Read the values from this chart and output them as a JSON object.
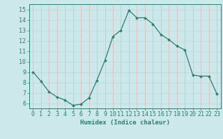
{
  "x": [
    0,
    1,
    2,
    3,
    4,
    5,
    6,
    7,
    8,
    9,
    10,
    11,
    12,
    13,
    14,
    15,
    16,
    17,
    18,
    19,
    20,
    21,
    22,
    23
  ],
  "y": [
    9.0,
    8.1,
    7.1,
    6.6,
    6.3,
    5.8,
    5.9,
    6.5,
    8.2,
    10.1,
    12.4,
    13.0,
    14.9,
    14.2,
    14.2,
    13.6,
    12.6,
    12.1,
    11.5,
    11.1,
    8.7,
    8.6,
    8.6,
    6.9
  ],
  "line_color": "#2d7d6e",
  "marker": "D",
  "marker_size": 2.0,
  "bg_color": "#cce8ea",
  "grid_color_v": "#e8b4b4",
  "grid_color_h": "#b8d8d8",
  "xlabel": "Humidex (Indice chaleur)",
  "ylim": [
    5.5,
    15.5
  ],
  "xlim": [
    -0.5,
    23.5
  ],
  "yticks": [
    6,
    7,
    8,
    9,
    10,
    11,
    12,
    13,
    14,
    15
  ],
  "xticks": [
    0,
    1,
    2,
    3,
    4,
    5,
    6,
    7,
    8,
    9,
    10,
    11,
    12,
    13,
    14,
    15,
    16,
    17,
    18,
    19,
    20,
    21,
    22,
    23
  ],
  "tick_color": "#2d7d6e",
  "label_fontsize": 6.5,
  "tick_fontsize": 6.0,
  "linewidth": 0.9
}
